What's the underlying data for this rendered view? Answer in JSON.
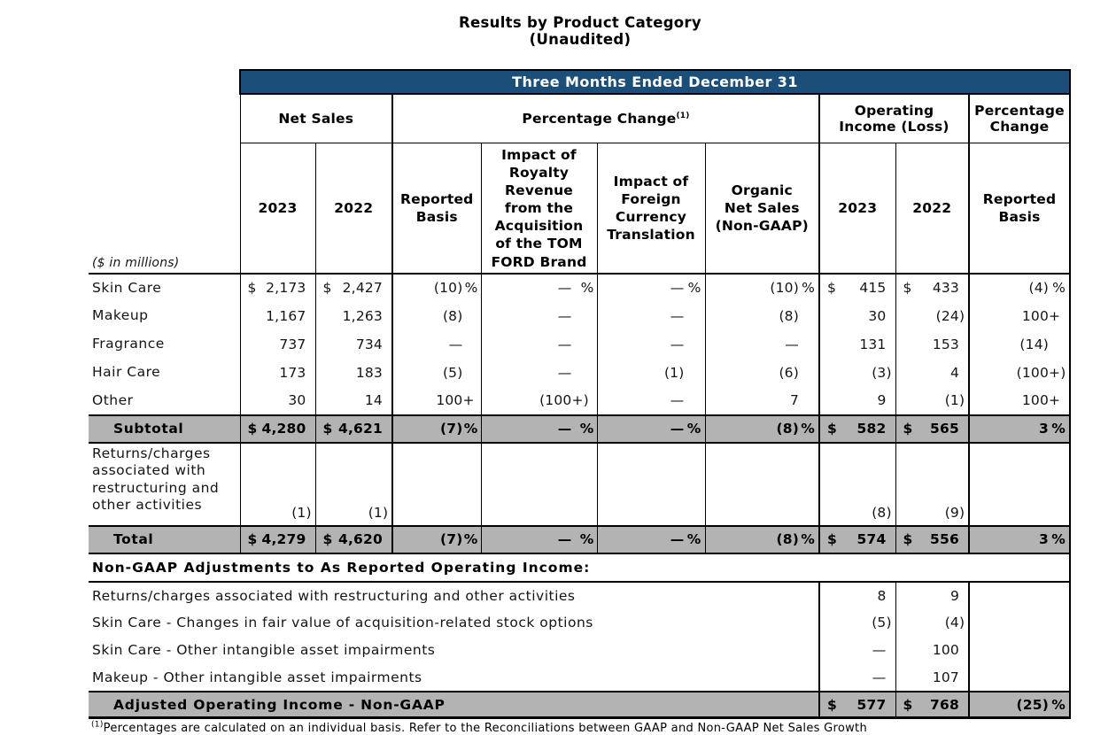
{
  "page_title": {
    "line1": "Results by Product Category",
    "line2": "(Unaudited)"
  },
  "band_title": "Three Months Ended December 31",
  "units_note": "($ in millions)",
  "colors": {
    "band_bg": "#1B4E79",
    "highlight_row_bg": "#B3B3B3",
    "border": "#000000"
  },
  "groups": [
    {
      "label": "Net Sales",
      "sup": ""
    },
    {
      "label": "Percentage Change",
      "sup": "(1)"
    },
    {
      "label": "Operating\nIncome (Loss)",
      "sup": ""
    },
    {
      "label": "Percentage\nChange",
      "sup": ""
    }
  ],
  "col_headers": [
    "2023",
    "2022",
    "Reported\nBasis",
    "Impact of\nRoyalty\nRevenue\nfrom the\nAcquisition\nof the TOM\nFORD Brand",
    "Impact of\nForeign\nCurrency\nTranslation",
    "Organic\nNet Sales\n(Non-GAAP)",
    "2023",
    "2022",
    "Reported\nBasis"
  ],
  "rows": [
    {
      "type": "item",
      "label": "Skin Care",
      "cells": [
        [
          "$",
          "2,173",
          ""
        ],
        [
          "$",
          "2,427",
          ""
        ],
        [
          "",
          "(10)",
          "%"
        ],
        [
          "",
          "—",
          "%"
        ],
        [
          "",
          "—",
          "%"
        ],
        [
          "",
          "(10)",
          "%"
        ],
        [
          "$",
          "415",
          ""
        ],
        [
          "$",
          "433",
          ""
        ],
        [
          "",
          "(4)",
          "%"
        ]
      ]
    },
    {
      "type": "item",
      "label": "Makeup",
      "cells": [
        [
          "",
          "1,167",
          ""
        ],
        [
          "",
          "1,263",
          ""
        ],
        [
          "",
          "(8)",
          ""
        ],
        [
          "",
          "—",
          ""
        ],
        [
          "",
          "—",
          ""
        ],
        [
          "",
          "(8)",
          ""
        ],
        [
          "",
          "30",
          ""
        ],
        [
          "",
          "(24)",
          ""
        ],
        [
          "",
          "100+",
          ""
        ]
      ]
    },
    {
      "type": "item",
      "label": "Fragrance",
      "cells": [
        [
          "",
          "737",
          ""
        ],
        [
          "",
          "734",
          ""
        ],
        [
          "",
          "—",
          ""
        ],
        [
          "",
          "—",
          ""
        ],
        [
          "",
          "—",
          ""
        ],
        [
          "",
          "—",
          ""
        ],
        [
          "",
          "131",
          ""
        ],
        [
          "",
          "153",
          ""
        ],
        [
          "",
          "(14)",
          ""
        ]
      ]
    },
    {
      "type": "item",
      "label": "Hair Care",
      "cells": [
        [
          "",
          "173",
          ""
        ],
        [
          "",
          "183",
          ""
        ],
        [
          "",
          "(5)",
          ""
        ],
        [
          "",
          "—",
          ""
        ],
        [
          "",
          "(1)",
          ""
        ],
        [
          "",
          "(6)",
          ""
        ],
        [
          "",
          "(3)",
          ""
        ],
        [
          "",
          "4",
          ""
        ],
        [
          "",
          "(100+)",
          ""
        ]
      ]
    },
    {
      "type": "item",
      "label": "Other",
      "cells": [
        [
          "",
          "30",
          ""
        ],
        [
          "",
          "14",
          ""
        ],
        [
          "",
          "100+",
          ""
        ],
        [
          "",
          "(100+)",
          ""
        ],
        [
          "",
          "—",
          ""
        ],
        [
          "",
          "7",
          ""
        ],
        [
          "",
          "9",
          ""
        ],
        [
          "",
          "(1)",
          ""
        ],
        [
          "",
          "100+",
          ""
        ]
      ]
    },
    {
      "type": "subtotal",
      "label": "Subtotal",
      "cells": [
        [
          "$",
          "4,280",
          ""
        ],
        [
          "$",
          "4,621",
          ""
        ],
        [
          "",
          "(7)",
          "%"
        ],
        [
          "",
          "—",
          "%"
        ],
        [
          "",
          "—",
          "%"
        ],
        [
          "",
          "(8)",
          "%"
        ],
        [
          "$",
          "582",
          ""
        ],
        [
          "$",
          "565",
          ""
        ],
        [
          "",
          "3",
          "%"
        ]
      ]
    },
    {
      "type": "tall",
      "label": "Returns/charges associated with restructuring and other activities",
      "cells": [
        [
          "",
          "(1)",
          ""
        ],
        [
          "",
          "(1)",
          ""
        ],
        [
          "",
          "",
          ""
        ],
        [
          "",
          "",
          ""
        ],
        [
          "",
          "",
          ""
        ],
        [
          "",
          "",
          ""
        ],
        [
          "",
          "(8)",
          ""
        ],
        [
          "",
          "(9)",
          ""
        ],
        [
          "",
          "",
          ""
        ]
      ]
    },
    {
      "type": "total",
      "label": "Total",
      "cells": [
        [
          "$",
          "4,279",
          ""
        ],
        [
          "$",
          "4,620",
          ""
        ],
        [
          "",
          "(7)",
          "%"
        ],
        [
          "",
          "—",
          "%"
        ],
        [
          "",
          "—",
          "%"
        ],
        [
          "",
          "(8)",
          "%"
        ],
        [
          "$",
          "574",
          ""
        ],
        [
          "$",
          "556",
          ""
        ],
        [
          "",
          "3",
          "%"
        ]
      ]
    }
  ],
  "section_header": "Non-GAAP Adjustments to As Reported Operating Income:",
  "adjustment_rows": [
    {
      "label": "Returns/charges associated with restructuring and other activities",
      "v2023": "8",
      "v2022": "9",
      "pc": ""
    },
    {
      "label": "Skin Care - Changes in fair value of acquisition-related stock options",
      "v2023": "(5)",
      "v2022": "(4)",
      "pc": ""
    },
    {
      "label": "Skin Care - Other intangible asset impairments",
      "v2023": "—",
      "v2022": "100",
      "pc": ""
    },
    {
      "label": "Makeup - Other intangible asset impairments",
      "v2023": "—",
      "v2022": "107",
      "pc": ""
    }
  ],
  "adjusted_total": {
    "label": "Adjusted Operating Income - Non-GAAP",
    "v2023": [
      "$",
      "577",
      ""
    ],
    "v2022": [
      "$",
      "768",
      ""
    ],
    "pc": [
      "",
      "(25)",
      "%"
    ]
  },
  "footnote": "Percentages are calculated on an individual basis. Refer to the Reconciliations between GAAP and Non-GAAP Net Sales Growth"
}
